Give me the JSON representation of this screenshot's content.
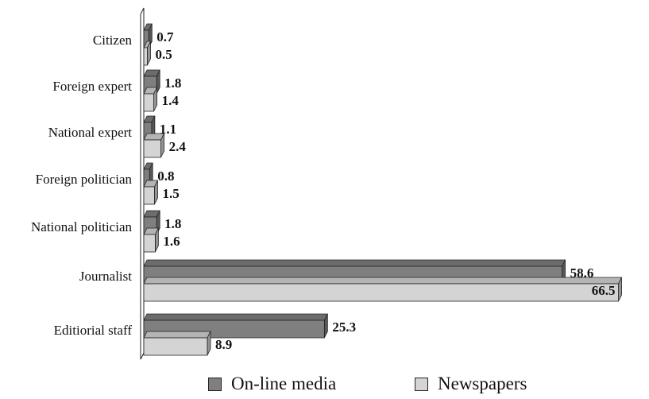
{
  "chart_data": {
    "type": "bar",
    "orientation": "horizontal",
    "style": "3d",
    "categories": [
      "Citizen",
      "Foreign expert",
      "National expert",
      "Foreign politician",
      "National politician",
      "Journalist",
      "Editiorial staff"
    ],
    "series": [
      {
        "name": "On-line media",
        "values": [
          0.7,
          1.8,
          1.1,
          0.8,
          1.8,
          58.6,
          25.3
        ],
        "color": "#7f7f7f"
      },
      {
        "name": "Newspapers",
        "values": [
          0.5,
          1.4,
          2.4,
          1.5,
          1.6,
          66.5,
          8.9
        ],
        "color": "#d4d4d4"
      }
    ],
    "value_labels": [
      [
        "0.7",
        "1.8",
        "1.1",
        "0.8",
        "1.8",
        "58.6",
        "25.3"
      ],
      [
        "0.5",
        "1.4",
        "2.4",
        "1.5",
        "1.6",
        "66.5",
        "8.9"
      ]
    ],
    "xlim": [
      0,
      70
    ],
    "grid": false,
    "legend_position": "bottom",
    "title": "",
    "xlabel": "",
    "ylabel": ""
  },
  "legend": {
    "items": [
      {
        "label": "On-line media",
        "color": "#7f7f7f"
      },
      {
        "label": "Newspapers",
        "color": "#d4d4d4"
      }
    ]
  }
}
